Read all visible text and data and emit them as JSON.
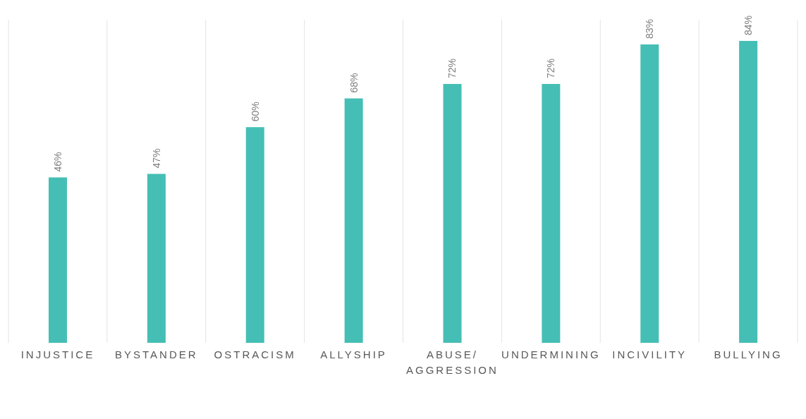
{
  "chart_data": {
    "type": "bar",
    "categories": [
      "INJUSTICE",
      "BYSTANDER",
      "OSTRACISM",
      "ALLYSHIP",
      "ABUSE/ AGGRESSION",
      "UNDERMINING",
      "INCIVILITY",
      "BULLYING"
    ],
    "values": [
      46,
      47,
      60,
      68,
      72,
      72,
      83,
      84
    ],
    "color": "#45bfb5",
    "value_labels": [
      "46%",
      "47%",
      "60%",
      "68%",
      "72%",
      "72%",
      "83%",
      "84%"
    ],
    "grid": "x"
  }
}
